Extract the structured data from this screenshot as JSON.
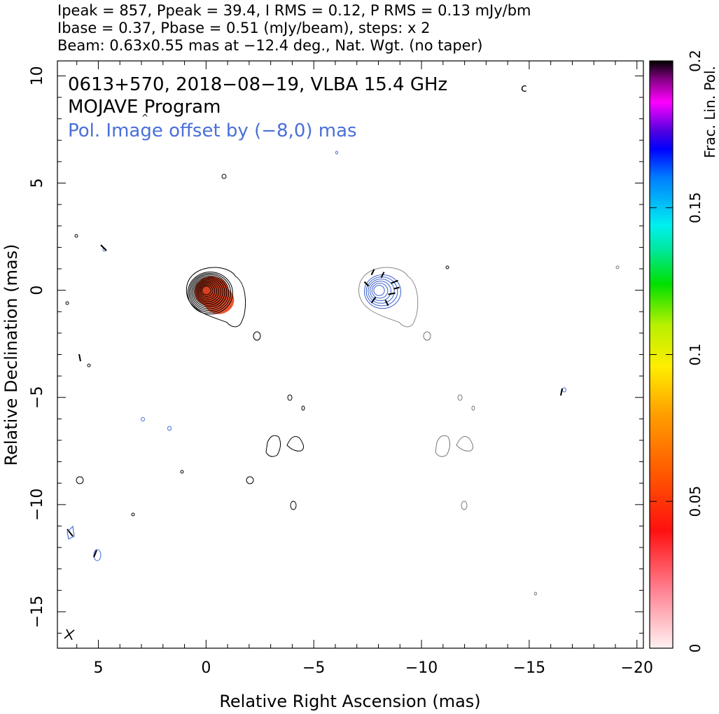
{
  "header": {
    "line1": "Ipeak = 857, Ppeak = 39.4, I RMS = 0.12, P RMS = 0.13 mJy/bm",
    "line2": "Ibase = 0.37, Pbase = 0.51 (mJy/beam), steps: x 2",
    "line3": "Beam: 0.63x0.55 mas at −12.4 deg., Nat. Wgt. (no taper)"
  },
  "annotations": {
    "source": "0613+570, 2018−08−19, VLBA 15.4 GHz",
    "program": "MOJAVE Program",
    "offset": "Pol. Image offset by (−8,0) mas"
  },
  "colors": {
    "offset_text": "#4a6fd8",
    "stokes_i_contours": "#000000",
    "pol_contours": "#3a5fcd",
    "pol_color_peak": "#e8421e"
  },
  "chart_data": {
    "type": "contour",
    "xlabel": "Relative Right Ascension (mas)",
    "ylabel": "Relative Declination (mas)",
    "xlim": [
      6.9,
      -20.3
    ],
    "ylim": [
      -16.7,
      10.7
    ],
    "x_ticks": [
      5,
      0,
      -5,
      -10,
      -15,
      -20
    ],
    "x_tick_labels": [
      "5",
      "0",
      "−5",
      "−10",
      "−15",
      "−20"
    ],
    "y_ticks": [
      10,
      5,
      0,
      -5,
      -10,
      -15
    ],
    "y_tick_labels": [
      "10",
      "5",
      "0",
      "−5",
      "−10",
      "−15"
    ],
    "stokes_i_core": {
      "x": 0,
      "y": 0,
      "contour_count": 12
    },
    "polarization_core": {
      "x": -8,
      "y": 0,
      "contour_count": 6
    },
    "colorbar": {
      "label": "Frac. Lin. Pol.",
      "range": [
        0,
        0.2
      ],
      "ticks": [
        0,
        0.05,
        0.1,
        0.15,
        0.2
      ],
      "tick_labels": [
        "0",
        "0.05",
        "0.1",
        "0.15",
        "0.2"
      ]
    }
  }
}
